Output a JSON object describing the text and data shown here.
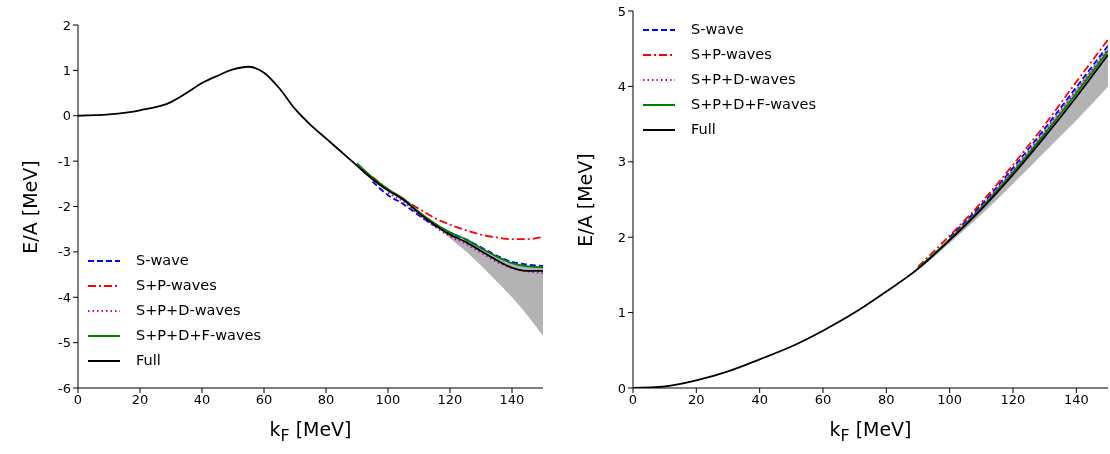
{
  "chart_data": [
    {
      "type": "line",
      "xlabel": "k$_{F}$ [MeV]",
      "ylabel": "E/A [MeV]",
      "xlim": [
        0,
        150
      ],
      "xticks": [
        0,
        20,
        40,
        60,
        80,
        100,
        120,
        140
      ],
      "ylim": [
        -6,
        2
      ],
      "yticks": [
        -6,
        -5,
        -4,
        -3,
        -2,
        -1,
        0,
        1,
        2
      ],
      "legend": "bottom left",
      "grid": false,
      "marker": "none",
      "x": [
        0,
        10,
        20,
        30,
        35,
        40,
        45,
        50,
        55,
        60,
        65,
        70,
        75,
        80,
        85,
        90,
        95,
        100,
        105,
        110,
        115,
        120,
        125,
        130,
        135,
        140,
        145,
        150
      ],
      "series": [
        {
          "name": "S-wave",
          "color": "#0000ff",
          "line_style": "dashed",
          "values": [
            null,
            null,
            null,
            null,
            null,
            null,
            null,
            null,
            null,
            null,
            null,
            null,
            null,
            null,
            null,
            null,
            -1.45,
            -1.75,
            -1.95,
            -2.2,
            -2.42,
            -2.58,
            -2.72,
            -2.9,
            -3.08,
            -3.22,
            -3.28,
            -3.31
          ]
        },
        {
          "name": "S+P-waves",
          "color": "#ff0000",
          "line_style": "dashdot",
          "values": [
            null,
            null,
            null,
            null,
            null,
            null,
            null,
            null,
            null,
            null,
            null,
            null,
            null,
            null,
            null,
            null,
            -1.35,
            -1.62,
            -1.85,
            -2.05,
            -2.25,
            -2.4,
            -2.52,
            -2.62,
            -2.68,
            -2.72,
            -2.72,
            -2.67
          ]
        },
        {
          "name": "S+P+D-waves",
          "color": "#bf00bf",
          "line_style": "dotted",
          "values": [
            null,
            null,
            null,
            null,
            null,
            null,
            null,
            null,
            null,
            null,
            null,
            null,
            null,
            null,
            null,
            null,
            null,
            -1.7,
            -1.9,
            -2.18,
            -2.44,
            -2.66,
            -2.82,
            -3.02,
            -3.22,
            -3.36,
            -3.43,
            -3.47
          ]
        },
        {
          "name": "S+P+D+F-waves",
          "color": "#008000",
          "line_style": "solid",
          "values": [
            null,
            null,
            null,
            null,
            null,
            null,
            null,
            null,
            null,
            null,
            null,
            null,
            null,
            null,
            null,
            -1.05,
            -1.36,
            -1.62,
            -1.83,
            -2.12,
            -2.37,
            -2.57,
            -2.72,
            -2.92,
            -3.1,
            -3.25,
            -3.32,
            -3.34
          ]
        },
        {
          "name": "Full",
          "color": "#000000",
          "line_style": "solid",
          "values": [
            0,
            0.03,
            0.12,
            0.3,
            0.5,
            0.72,
            0.88,
            1.02,
            1.08,
            0.95,
            0.6,
            0.15,
            -0.2,
            -0.5,
            -0.8,
            -1.1,
            -1.4,
            -1.65,
            -1.85,
            -2.15,
            -2.4,
            -2.62,
            -2.78,
            -2.98,
            -3.18,
            -3.35,
            -3.42,
            -3.42
          ],
          "lower": [
            0,
            0.03,
            0.12,
            0.3,
            0.5,
            0.72,
            0.88,
            1.02,
            1.08,
            0.95,
            0.6,
            0.15,
            -0.2,
            -0.5,
            -0.8,
            -1.1,
            -1.4,
            -1.65,
            -1.85,
            -2.15,
            -2.4,
            -2.7,
            -2.98,
            -3.3,
            -3.65,
            -4.0,
            -4.4,
            -4.85
          ],
          "upper": [
            0,
            0.03,
            0.12,
            0.3,
            0.5,
            0.72,
            0.88,
            1.02,
            1.08,
            0.95,
            0.6,
            0.15,
            -0.2,
            -0.5,
            -0.8,
            -1.1,
            -1.4,
            -1.65,
            -1.85,
            -2.15,
            -2.4,
            -2.6,
            -2.75,
            -2.95,
            -3.12,
            -3.25,
            -3.3,
            -3.32
          ]
        }
      ]
    },
    {
      "type": "line",
      "xlabel": "k$_{F}$ [MeV]",
      "ylabel": "E/A [MeV]",
      "xlim": [
        0,
        150
      ],
      "xticks": [
        0,
        20,
        40,
        60,
        80,
        100,
        120,
        140
      ],
      "ylim": [
        0,
        5
      ],
      "yticks": [
        0,
        1,
        2,
        3,
        4,
        5
      ],
      "legend": "top left",
      "grid": false,
      "marker": "none",
      "x": [
        0,
        10,
        20,
        30,
        40,
        50,
        60,
        70,
        80,
        90,
        100,
        110,
        120,
        130,
        140,
        150
      ],
      "series": [
        {
          "name": "S-wave",
          "color": "#0000ff",
          "line_style": "dashed",
          "values": [
            null,
            null,
            null,
            null,
            null,
            null,
            null,
            null,
            null,
            null,
            2.0,
            2.43,
            2.92,
            3.44,
            3.99,
            4.54
          ]
        },
        {
          "name": "S+P-waves",
          "color": "#ff0000",
          "line_style": "dashdot",
          "values": [
            null,
            null,
            null,
            null,
            null,
            null,
            null,
            null,
            null,
            1.61,
            2.02,
            2.46,
            2.96,
            3.49,
            4.06,
            4.62
          ]
        },
        {
          "name": "S+P+D-waves",
          "color": "#bf00bf",
          "line_style": "dotted",
          "values": [
            null,
            null,
            null,
            null,
            null,
            null,
            null,
            null,
            null,
            null,
            1.98,
            2.41,
            2.89,
            3.41,
            3.95,
            4.5
          ]
        },
        {
          "name": "S+P+D+F-waves",
          "color": "#008000",
          "line_style": "solid",
          "values": [
            null,
            null,
            null,
            null,
            null,
            null,
            null,
            null,
            null,
            1.59,
            1.97,
            2.39,
            2.86,
            3.37,
            3.91,
            4.47
          ]
        },
        {
          "name": "Full",
          "color": "#000000",
          "line_style": "solid",
          "values": [
            0,
            0.02,
            0.1,
            0.22,
            0.38,
            0.55,
            0.76,
            1.0,
            1.28,
            1.58,
            1.96,
            2.37,
            2.83,
            3.33,
            3.86,
            4.42
          ],
          "lower": [
            0,
            0.02,
            0.1,
            0.22,
            0.38,
            0.55,
            0.76,
            1.0,
            1.28,
            1.57,
            1.92,
            2.3,
            2.71,
            3.13,
            3.55,
            4.0
          ],
          "upper": [
            0,
            0.02,
            0.1,
            0.22,
            0.38,
            0.55,
            0.76,
            1.0,
            1.28,
            1.6,
            1.99,
            2.42,
            2.9,
            3.42,
            3.97,
            4.52
          ]
        }
      ]
    }
  ]
}
